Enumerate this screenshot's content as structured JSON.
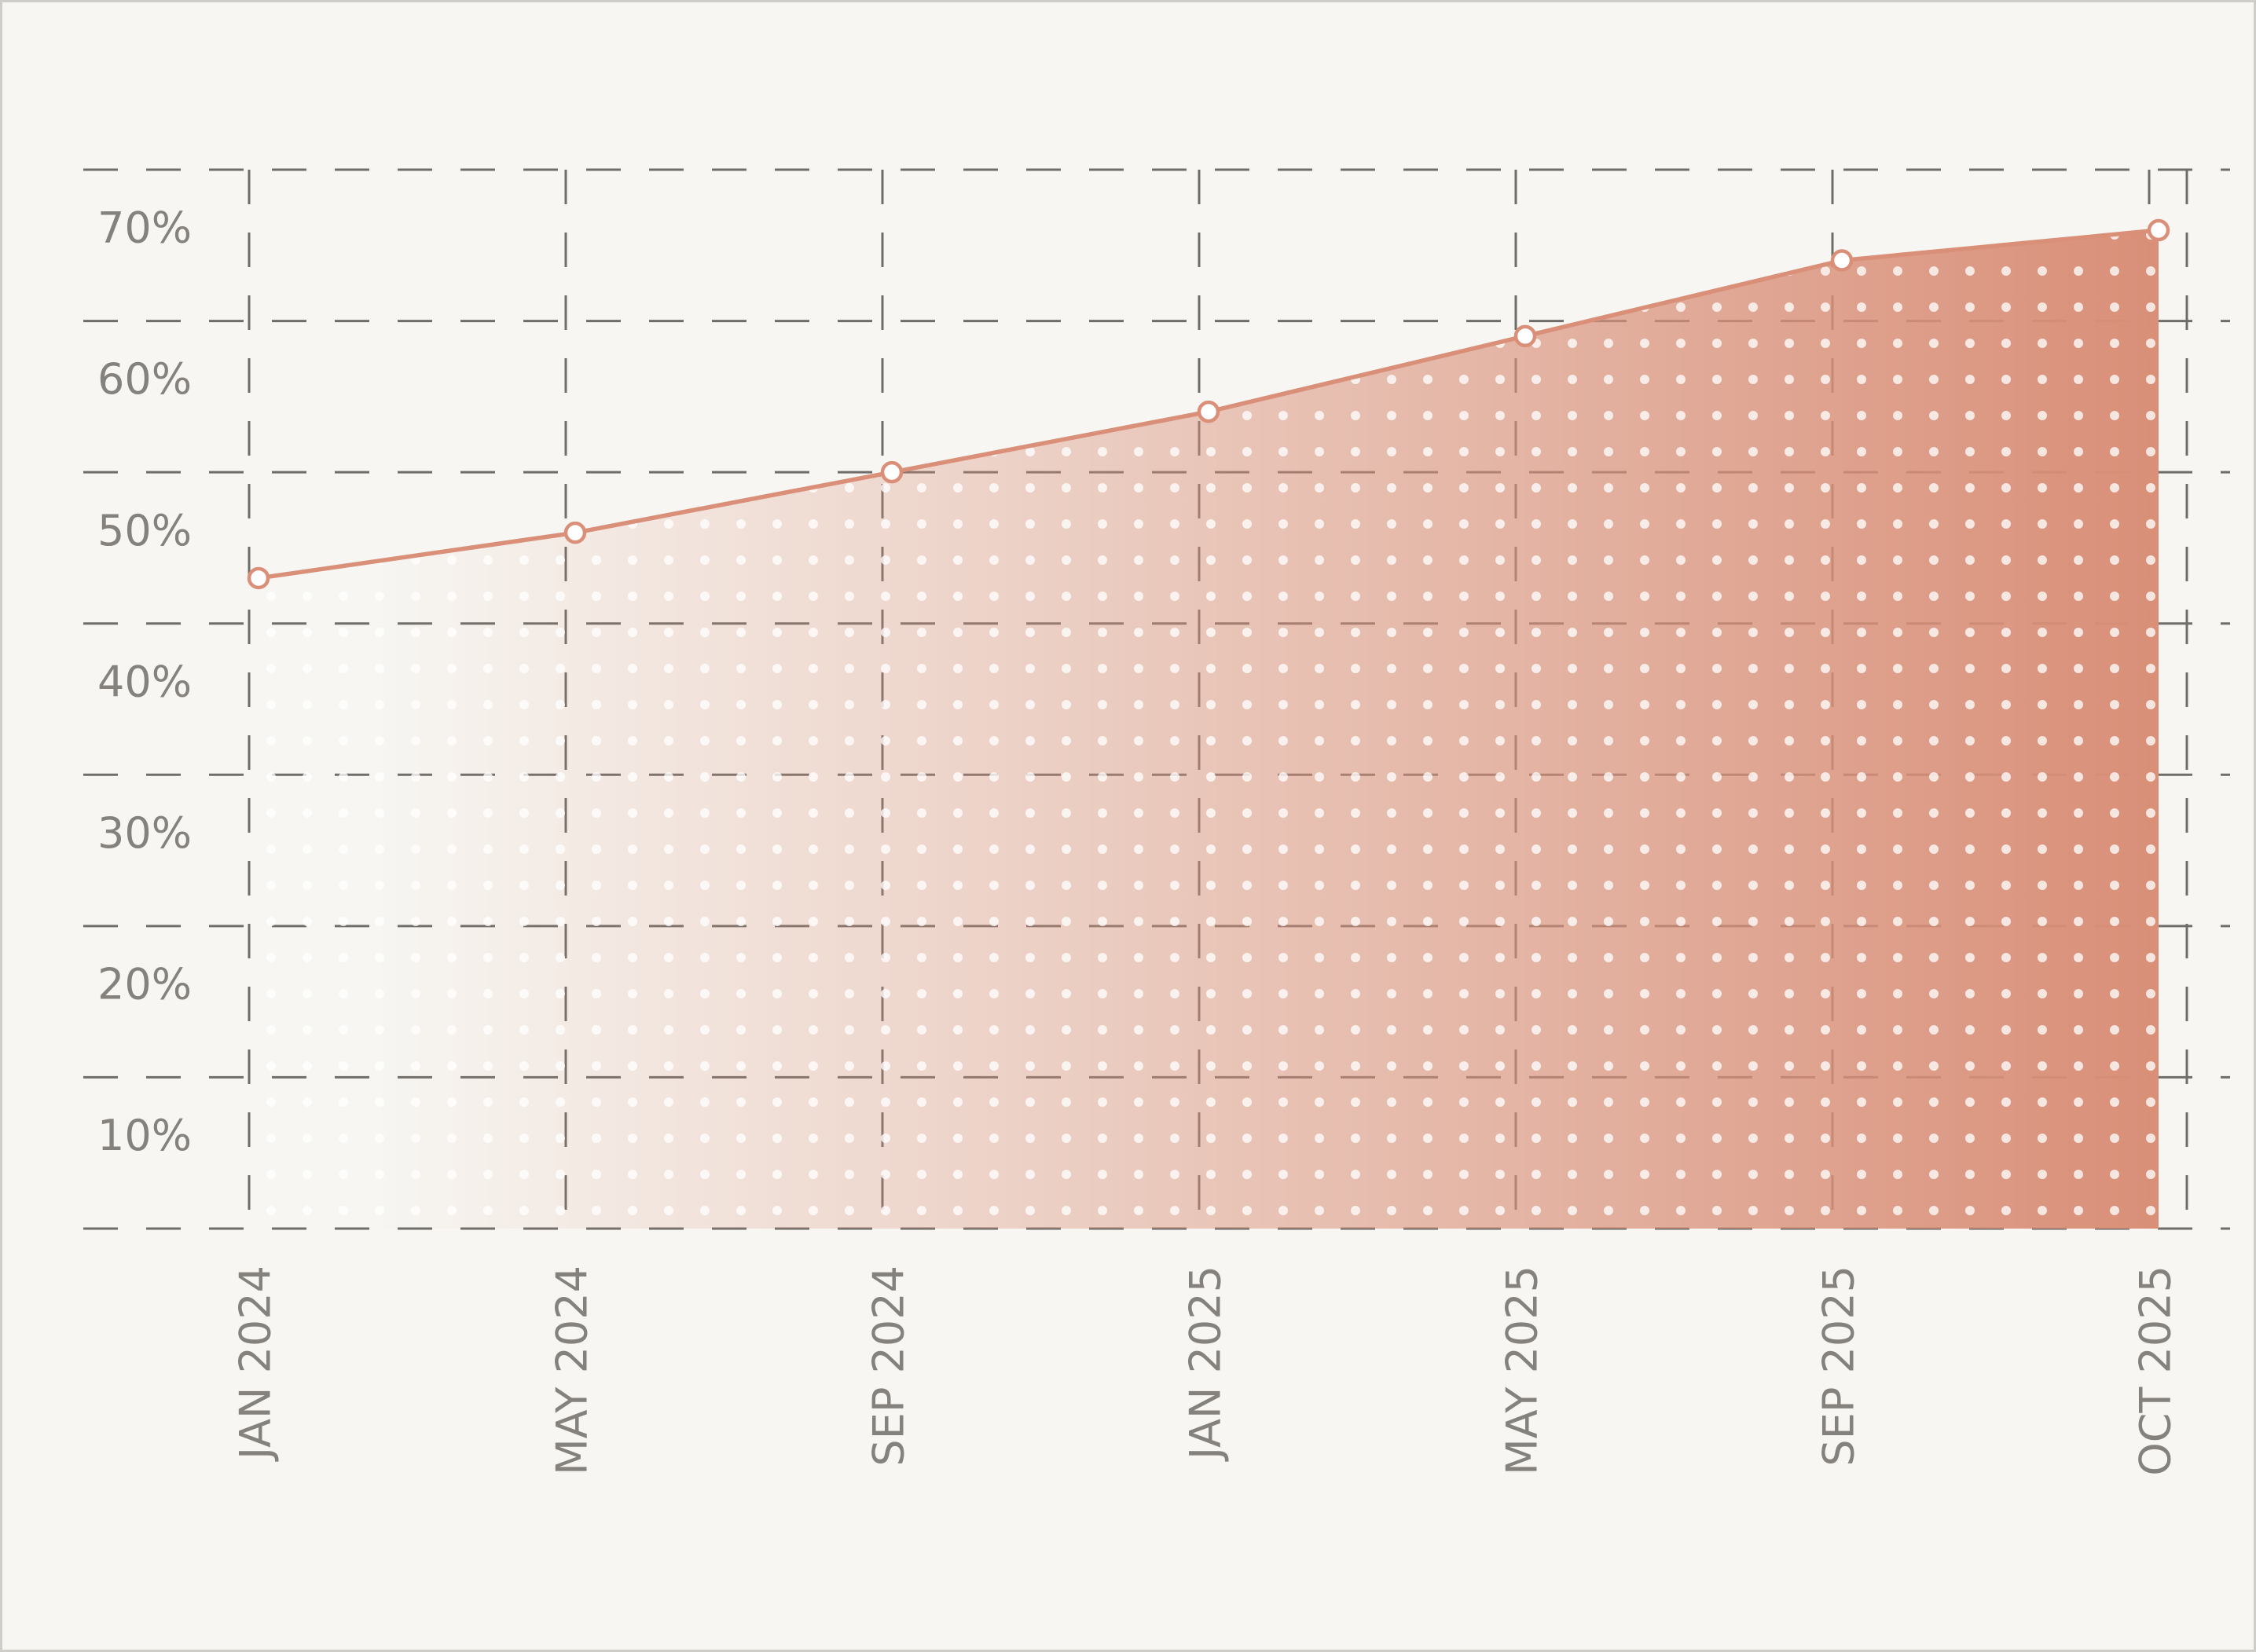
{
  "chart_data": {
    "type": "area",
    "categories": [
      "JAN 2024",
      "MAY 2024",
      "SEP 2024",
      "JAN 2025",
      "MAY 2025",
      "SEP 2025",
      "OCT 2025"
    ],
    "values": [
      43,
      46,
      50,
      54,
      59,
      64,
      66
    ],
    "color": "#d98f78",
    "ylim": [
      0,
      70
    ],
    "yticks": [
      {
        "value": 10,
        "label": "10%"
      },
      {
        "value": 20,
        "label": "20%"
      },
      {
        "value": 30,
        "label": "30%"
      },
      {
        "value": 40,
        "label": "40%"
      },
      {
        "value": 50,
        "label": "50%"
      },
      {
        "value": 60,
        "label": "60%"
      },
      {
        "value": 70,
        "label": "70%"
      }
    ],
    "grid": true
  }
}
